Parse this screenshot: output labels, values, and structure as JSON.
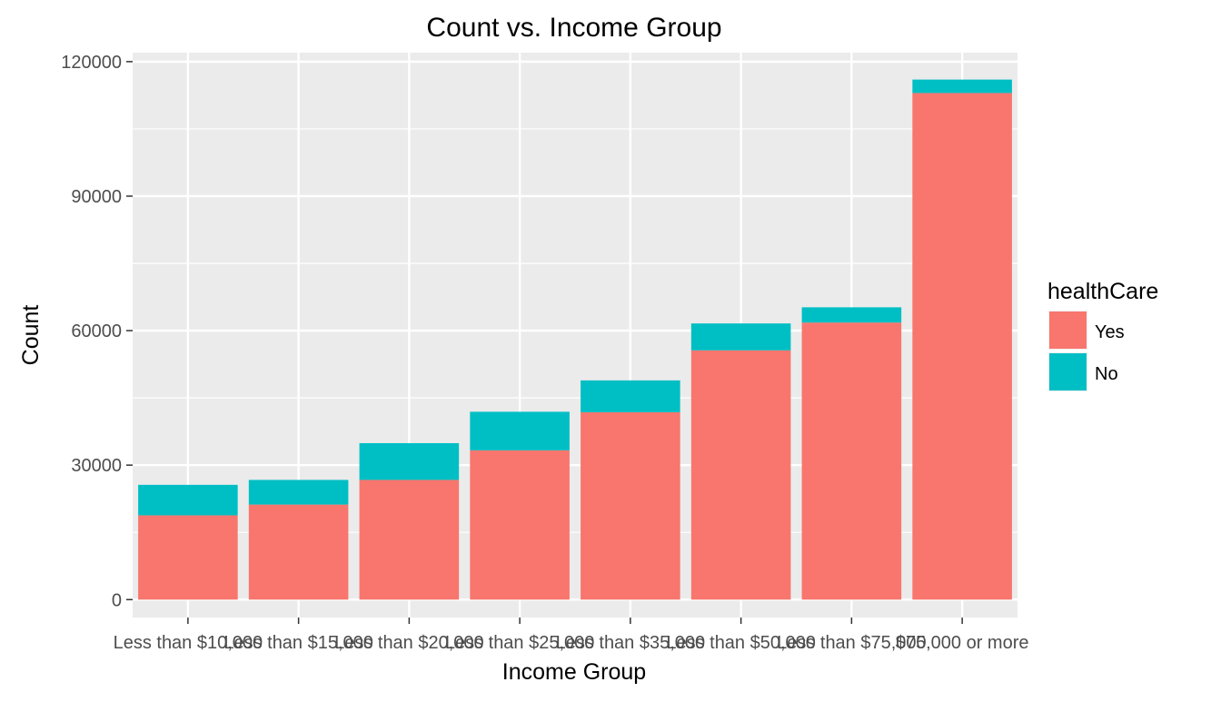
{
  "chart_data": {
    "type": "bar",
    "stacked": true,
    "title": "Count vs. Income Group",
    "xlabel": "Income Group",
    "ylabel": "Count",
    "ylim": [
      -4000,
      122000
    ],
    "yticks": [
      0,
      30000,
      60000,
      90000,
      120000
    ],
    "grid": true,
    "legend_position": "right",
    "categories": [
      "Less than $10,000",
      "Less than $15,000",
      "Less than $20,000",
      "Less than $25,000",
      "Less than $35,000",
      "Less than $50,000",
      "Less than $75,000",
      "$75,000 or more"
    ],
    "series": [
      {
        "name": "Yes",
        "color": "#F8766D",
        "values": [
          18800,
          21200,
          26700,
          33300,
          41800,
          55600,
          61800,
          113000
        ]
      },
      {
        "name": "No",
        "color": "#00BFC4",
        "values": [
          6800,
          5500,
          8200,
          8600,
          7100,
          6000,
          3400,
          3000
        ]
      }
    ],
    "legend_title": "healthCare"
  }
}
